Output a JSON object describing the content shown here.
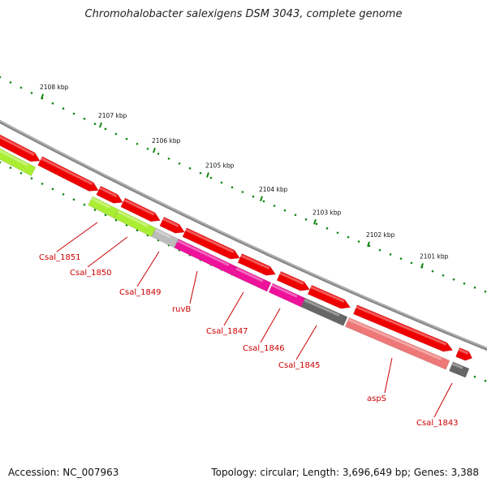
{
  "title": "Chromohalobacter salexigens DSM 3043, complete genome",
  "footer": {
    "accession": "Accession: NC_007963",
    "summary": "Topology: circular; Length: 3,696,649 bp; Genes: 3,388"
  },
  "ruler": {
    "labels": [
      "2108 kbp",
      "2107 kbp",
      "2106 kbp",
      "2105 kbp",
      "2104 kbp",
      "2103 kbp",
      "2102 kbp",
      "2101 kbp"
    ]
  },
  "colors": {
    "cds_red": "#ee0000",
    "gene_green": "#aaee33",
    "gene_magenta": "#ee1199",
    "gene_salmon": "#ee7777",
    "gene_gray_dark": "#666666",
    "gene_gray_light": "#bbbbbb",
    "backbone": "#888888",
    "tick": "#118811",
    "label": "#cc0000"
  },
  "gene_labels": [
    "Csal_1851",
    "Csal_1850",
    "Csal_1849",
    "ruvB",
    "Csal_1847",
    "Csal_1846",
    "Csal_1845",
    "aspS",
    "Csal_1843"
  ]
}
